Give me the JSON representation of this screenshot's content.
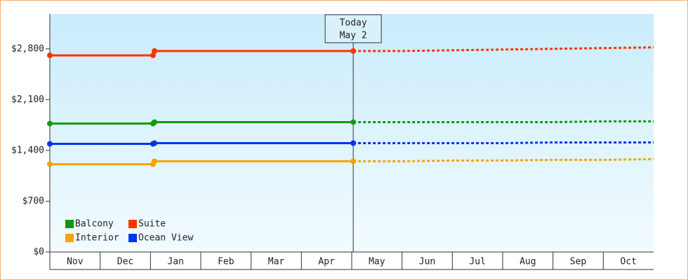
{
  "chart_data": {
    "type": "line",
    "categories": [
      "Nov",
      "Dec",
      "Jan",
      "Feb",
      "Mar",
      "Apr",
      "May",
      "Jun",
      "Jul",
      "Aug",
      "Sep",
      "Oct"
    ],
    "x": [
      0,
      2.05,
      2.08,
      6.03,
      7,
      8,
      9,
      10,
      11,
      12
    ],
    "xlim": [
      0,
      12
    ],
    "ylim": [
      0,
      3280
    ],
    "yticks": [
      {
        "value": 0,
        "label": "$0"
      },
      {
        "value": 700,
        "label": "$700"
      },
      {
        "value": 1400,
        "label": "$1,400"
      },
      {
        "value": 2100,
        "label": "$2,100"
      },
      {
        "value": 2800,
        "label": "$2,800"
      }
    ],
    "annotation": {
      "x": 6.03,
      "lines": [
        "Today",
        "May 2"
      ]
    },
    "series": [
      {
        "name": "Balcony",
        "color": "#119911",
        "values": [
          1770,
          1770,
          1790,
          1790,
          1790,
          1790,
          1790,
          1790,
          1800,
          1800
        ]
      },
      {
        "name": "Suite",
        "color": "#ff3300",
        "values": [
          2710,
          2710,
          2770,
          2770,
          2770,
          2780,
          2790,
          2800,
          2810,
          2820
        ]
      },
      {
        "name": "Interior",
        "color": "#f5a300",
        "values": [
          1210,
          1210,
          1250,
          1250,
          1250,
          1260,
          1260,
          1270,
          1270,
          1280
        ]
      },
      {
        "name": "Ocean View",
        "color": "#0033ee",
        "values": [
          1490,
          1490,
          1500,
          1500,
          1500,
          1500,
          1500,
          1510,
          1510,
          1510
        ]
      }
    ],
    "legend": "bottom-left"
  }
}
